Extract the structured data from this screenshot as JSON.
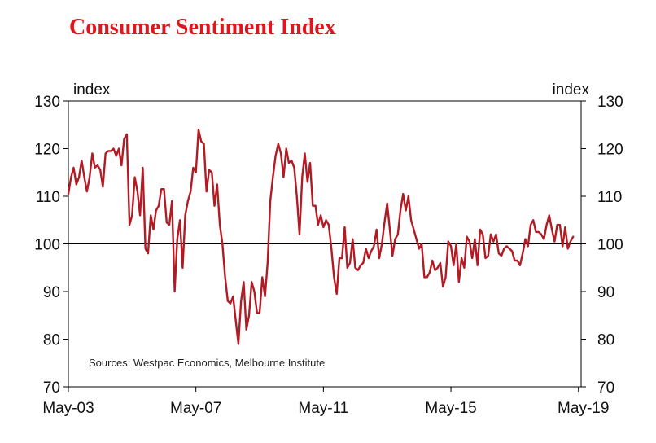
{
  "chart_data": {
    "type": "line",
    "title": "Consumer Sentiment Index",
    "left_unit": "index",
    "right_unit": "index",
    "source": "Sources: Westpac Economics, Melbourne Institute",
    "ylim": [
      70,
      130
    ],
    "yticks": [
      70,
      80,
      90,
      100,
      110,
      120,
      130
    ],
    "reference_line": 100,
    "x_range": [
      "May-03",
      "May-19"
    ],
    "xticks": [
      {
        "month_index": 0,
        "label": "May-03"
      },
      {
        "month_index": 48,
        "label": "May-07"
      },
      {
        "month_index": 96,
        "label": "May-11"
      },
      {
        "month_index": 144,
        "label": "May-15"
      },
      {
        "month_index": 192,
        "label": "May-19"
      }
    ],
    "colors": {
      "line": "#b31b24",
      "title": "#e0161f",
      "axis": "#000000"
    },
    "series": [
      {
        "name": "Consumer Sentiment Index",
        "start": "May-03",
        "values": [
          110.5,
          114,
          116,
          112.5,
          114,
          117.5,
          114,
          111,
          114,
          119,
          116,
          116.5,
          115.5,
          112,
          119,
          119.5,
          119.5,
          120,
          118.5,
          120,
          116.5,
          122,
          123,
          104,
          106,
          114,
          111,
          106,
          116,
          99,
          98,
          106,
          103,
          107,
          108,
          111.5,
          111.5,
          104.5,
          104,
          109,
          90,
          101,
          105,
          95,
          106,
          109,
          111,
          116,
          115,
          124,
          121.5,
          121,
          111,
          115.5,
          115,
          108,
          112.5,
          104,
          100,
          93,
          88,
          87.5,
          89,
          84,
          79,
          88,
          92,
          82,
          85,
          92,
          90,
          85.5,
          85.5,
          93,
          89,
          96,
          109,
          114,
          118.5,
          121,
          119,
          114,
          120,
          117,
          117.5,
          116,
          110,
          102,
          114,
          119,
          113,
          117,
          108,
          108,
          104,
          106,
          103.5,
          105,
          104,
          99,
          93,
          89.5,
          97,
          97,
          103.5,
          95,
          96,
          101,
          95,
          94.5,
          95.5,
          96,
          99,
          97,
          98.5,
          99.5,
          103,
          97,
          100,
          104.5,
          108.5,
          103,
          97.5,
          101,
          102,
          107,
          110.5,
          107,
          110,
          105,
          103,
          101,
          99,
          100,
          93,
          93,
          94,
          96.5,
          94.5,
          95,
          96,
          91,
          93,
          100.5,
          99.5,
          95.5,
          100,
          92,
          97,
          95,
          101.5,
          100.5,
          97,
          101,
          95.5,
          103,
          102,
          97,
          97.5,
          102,
          100.5,
          102,
          98,
          97.5,
          99,
          99.5,
          99,
          98.5,
          96.5,
          96.5,
          95.5,
          98,
          101,
          99.5,
          104,
          105,
          102.5,
          102.5,
          102,
          101,
          104,
          106,
          103,
          100.5,
          104,
          104,
          99.5,
          103.5,
          99,
          100.5,
          101.5
        ]
      }
    ]
  }
}
